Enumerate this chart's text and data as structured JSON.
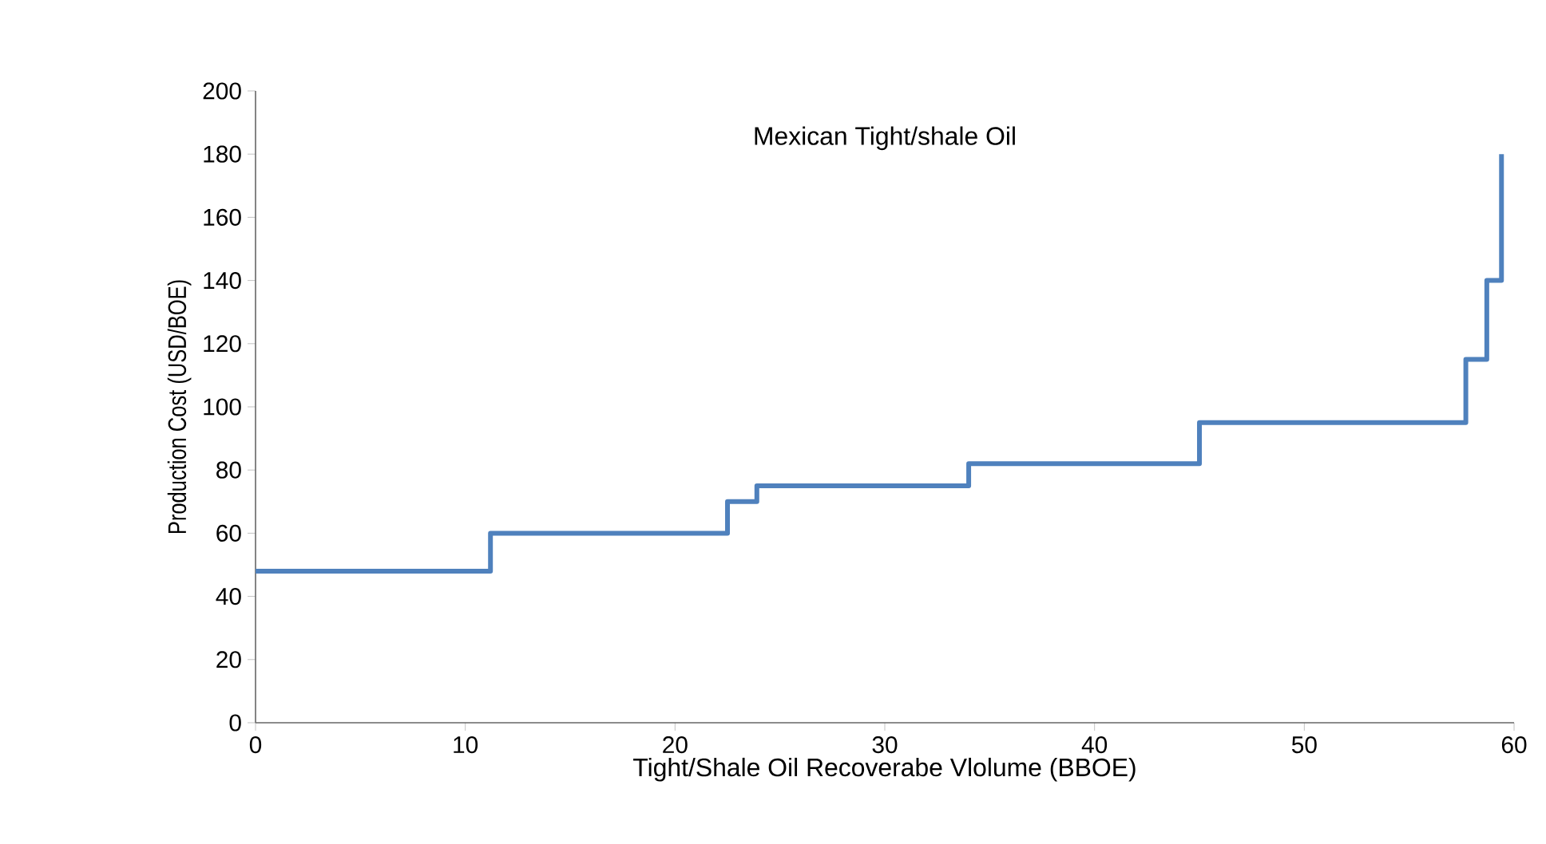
{
  "chart_data": {
    "type": "step",
    "title": "Mexican Tight/shale Oil",
    "xlabel": "Tight/Shale Oil Recoverabe Vlolume (BBOE)",
    "ylabel": "Production Cost (USD/BOE)",
    "x": [
      0,
      11.2,
      22.5,
      23.9,
      34,
      45,
      57.7,
      58.7,
      59.4
    ],
    "series": [
      {
        "color": "#4f81bd",
        "values": [
          48,
          60,
          70,
          75,
          82,
          95,
          115,
          140,
          180
        ]
      }
    ],
    "xlim": [
      0,
      60
    ],
    "xticks": [
      0,
      10,
      20,
      30,
      40,
      50,
      60
    ],
    "ylim": [
      0,
      200
    ],
    "yticks": [
      0,
      20,
      40,
      60,
      80,
      100,
      120,
      140,
      160,
      180,
      200
    ]
  }
}
